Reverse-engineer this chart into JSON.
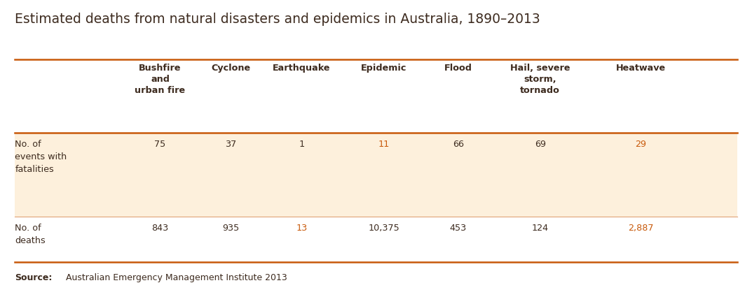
{
  "title": "Estimated deaths from natural disasters and epidemics in Australia, 1890–2013",
  "columns": [
    "Bushfire\nand\nurban fire",
    "Cyclone",
    "Earthquake",
    "Epidemic",
    "Flood",
    "Hail, severe\nstorm,\ntornado",
    "Heatwave"
  ],
  "row_labels": [
    "No. of\nevents with\nfatalities",
    "No. of\ndeaths"
  ],
  "row1_values": [
    "75",
    "37",
    "1",
    "11",
    "66",
    "69",
    "29"
  ],
  "row2_values": [
    "843",
    "935",
    "13",
    "10,375",
    "453",
    "124",
    "2,887"
  ],
  "row1_highlight_cols": [
    3,
    6
  ],
  "row2_highlight_cols": [
    2,
    6
  ],
  "highlight_color": "#c8590a",
  "normal_color": "#3d2b1f",
  "header_color": "#3d2b1f",
  "row1_bg": "#fdf0dc",
  "row2_bg": "#ffffff",
  "line_color": "#c8590a",
  "source_label": "Source:",
  "source_text": "Australian Emergency Management Institute 2013",
  "bg_color": "#ffffff",
  "title_color": "#3d2b1f",
  "title_fontsize": 13.5,
  "header_fontsize": 9.2,
  "cell_fontsize": 9.2,
  "source_fontsize": 9.0
}
